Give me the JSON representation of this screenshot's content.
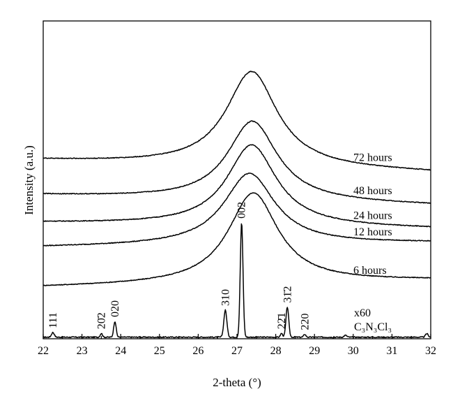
{
  "chart_data": {
    "type": "line",
    "xlabel": "2-theta (°)",
    "ylabel": "Intensity (a.u.)",
    "xlim": [
      22,
      32
    ],
    "xticks": [
      22,
      23,
      24,
      25,
      26,
      27,
      28,
      29,
      30,
      31,
      32
    ],
    "ylim": [
      0,
      100
    ],
    "series": [
      {
        "name": "x60 C3N3Cl3",
        "label_lines": [
          "x60",
          "C₃N₃Cl₃"
        ],
        "baseline": 0.5,
        "peaks": [
          {
            "x": 22.25,
            "h": 1.5,
            "w": 0.05,
            "label": "111"
          },
          {
            "x": 23.5,
            "h": 1.2,
            "w": 0.04,
            "label": "20̄2"
          },
          {
            "x": 23.85,
            "h": 5.0,
            "w": 0.045,
            "label": "020"
          },
          {
            "x": 26.7,
            "h": 8.5,
            "w": 0.055,
            "label": "310"
          },
          {
            "x": 27.12,
            "h": 36.0,
            "w": 0.05,
            "label": "002"
          },
          {
            "x": 28.15,
            "h": 1.2,
            "w": 0.04,
            "label": "22̄1"
          },
          {
            "x": 28.3,
            "h": 9.5,
            "w": 0.05,
            "label": "31̄2"
          },
          {
            "x": 28.75,
            "h": 0.9,
            "w": 0.04,
            "label": "220"
          },
          {
            "x": 29.8,
            "h": 0.6,
            "w": 0.05
          },
          {
            "x": 31.9,
            "h": 1.1,
            "w": 0.05
          }
        ]
      },
      {
        "name": "6 hours",
        "label": "6 hours",
        "left": 16.2,
        "right": 18.4,
        "center": 27.42,
        "height": 28.5,
        "hwhm": 0.78
      },
      {
        "name": "12 hours",
        "label": "12 hours",
        "left": 28.8,
        "right": 30.2,
        "center": 27.32,
        "height": 22.5,
        "hwhm": 0.8
      },
      {
        "name": "24 hours",
        "label": "24 hours",
        "left": 36.5,
        "right": 34.6,
        "center": 27.38,
        "height": 25.5,
        "hwhm": 0.78
      },
      {
        "name": "48 hours",
        "label": "48 hours",
        "left": 45.2,
        "right": 42.0,
        "center": 27.4,
        "height": 25.0,
        "hwhm": 0.78
      },
      {
        "name": "72 hours",
        "label": "72 hours",
        "left": 56.2,
        "right": 52.3,
        "center": 27.38,
        "height": 30.0,
        "hwhm": 0.8
      }
    ]
  }
}
